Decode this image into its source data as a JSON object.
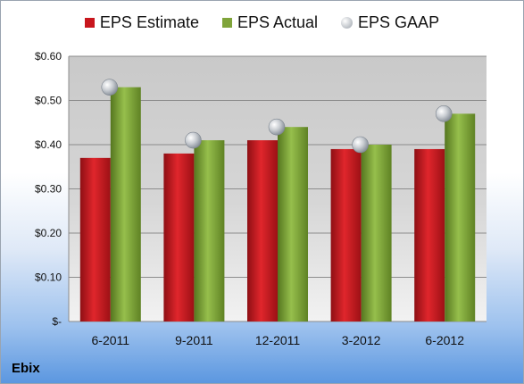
{
  "chart_data": {
    "type": "bar",
    "categories": [
      "6-2011",
      "9-2011",
      "12-2011",
      "3-2012",
      "6-2012"
    ],
    "series": [
      {
        "name": "EPS Estimate",
        "values": [
          0.37,
          0.38,
          0.41,
          0.39,
          0.39
        ],
        "color": "#c8161d",
        "kind": "bar"
      },
      {
        "name": "EPS Actual",
        "values": [
          0.53,
          0.41,
          0.44,
          0.4,
          0.47
        ],
        "color": "#7fa43a",
        "kind": "bar"
      },
      {
        "name": "EPS GAAP",
        "values": [
          0.53,
          0.41,
          0.44,
          0.4,
          0.47
        ],
        "color": "#b8bec6",
        "kind": "marker"
      }
    ],
    "ylim": [
      0,
      0.6
    ],
    "yticks": [
      {
        "value": 0.6,
        "label": "$0.60"
      },
      {
        "value": 0.5,
        "label": "$0.50"
      },
      {
        "value": 0.4,
        "label": "$0.40"
      },
      {
        "value": 0.3,
        "label": "$0.30"
      },
      {
        "value": 0.2,
        "label": "$0.20"
      },
      {
        "value": 0.1,
        "label": "$0.10"
      },
      {
        "value": 0,
        "label": "$-"
      }
    ],
    "grid": true,
    "legend": "top-center"
  },
  "company": "Ebix"
}
